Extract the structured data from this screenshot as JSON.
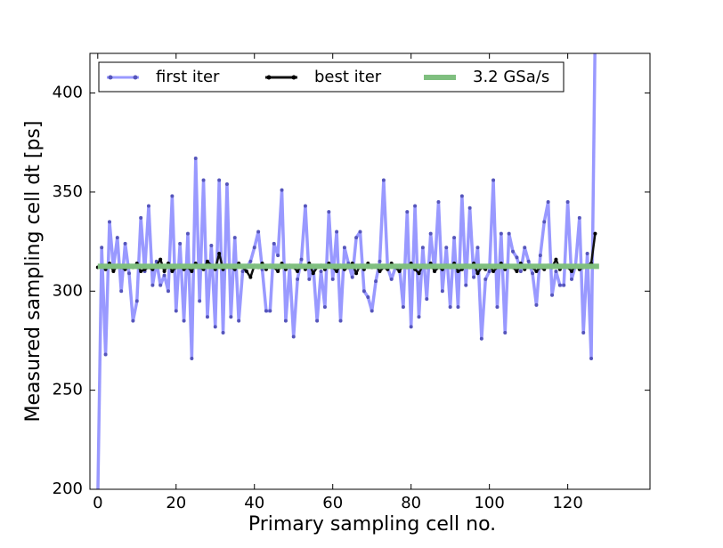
{
  "chart_data": {
    "type": "line",
    "xlabel": "Primary sampling cell no.",
    "ylabel": "Measured sampling cell dt [ps]",
    "x": [
      0,
      1,
      2,
      3,
      4,
      5,
      6,
      7,
      8,
      9,
      10,
      11,
      12,
      13,
      14,
      15,
      16,
      17,
      18,
      19,
      20,
      21,
      22,
      23,
      24,
      25,
      26,
      27,
      28,
      29,
      30,
      31,
      32,
      33,
      34,
      35,
      36,
      37,
      38,
      39,
      40,
      41,
      42,
      43,
      44,
      45,
      46,
      47,
      48,
      49,
      50,
      51,
      52,
      53,
      54,
      55,
      56,
      57,
      58,
      59,
      60,
      61,
      62,
      63,
      64,
      65,
      66,
      67,
      68,
      69,
      70,
      71,
      72,
      73,
      74,
      75,
      76,
      77,
      78,
      79,
      80,
      81,
      82,
      83,
      84,
      85,
      86,
      87,
      88,
      89,
      90,
      91,
      92,
      93,
      94,
      95,
      96,
      97,
      98,
      99,
      100,
      101,
      102,
      103,
      104,
      105,
      106,
      107,
      108,
      109,
      110,
      111,
      112,
      113,
      114,
      115,
      116,
      117,
      118,
      119,
      120,
      121,
      122,
      123,
      124,
      125,
      126,
      127
    ],
    "series": [
      {
        "name": "first iter",
        "color": "#9999ff",
        "values": [
          195,
          322,
          268,
          335,
          312,
          327,
          300,
          324,
          309,
          285,
          295,
          337,
          310,
          343,
          303,
          315,
          303,
          308,
          300,
          348,
          290,
          324,
          285,
          329,
          266,
          367,
          295,
          356,
          287,
          323,
          282,
          356,
          279,
          354,
          287,
          327,
          285,
          310,
          312,
          315,
          322,
          330,
          311,
          290,
          290,
          324,
          318,
          351,
          285,
          312,
          277,
          306,
          316,
          343,
          306,
          313,
          285,
          310,
          292,
          340,
          306,
          330,
          285,
          322,
          314,
          307,
          327,
          330,
          300,
          297,
          290,
          305,
          315,
          356,
          312,
          306,
          312,
          313,
          292,
          340,
          282,
          343,
          287,
          322,
          296,
          329,
          310,
          345,
          300,
          322,
          292,
          327,
          292,
          348,
          303,
          342,
          307,
          322,
          276,
          306,
          310,
          356,
          292,
          329,
          279,
          329,
          320,
          317,
          310,
          322,
          315,
          309,
          293,
          318,
          335,
          345,
          298,
          310,
          303,
          303,
          345,
          306,
          313,
          337,
          279,
          319,
          266,
          430
        ]
      },
      {
        "name": "best iter",
        "color": "#111111",
        "values": [
          312,
          313,
          311,
          314,
          310,
          313,
          312,
          311,
          313,
          312,
          314,
          310,
          311,
          312,
          311,
          313,
          316,
          310,
          314,
          310,
          312,
          313,
          311,
          312,
          310,
          314,
          312,
          311,
          315,
          313,
          311,
          319,
          311,
          313,
          312,
          311,
          314,
          312,
          310,
          307,
          313,
          312,
          314,
          311,
          313,
          312,
          310,
          314,
          311,
          313,
          312,
          310,
          313,
          311,
          314,
          309,
          312,
          313,
          311,
          314,
          312,
          310,
          313,
          311,
          312,
          314,
          309,
          313,
          311,
          314,
          312,
          313,
          310,
          312,
          311,
          314,
          312,
          310,
          313,
          312,
          314,
          311,
          309,
          313,
          312,
          314,
          310,
          312,
          311,
          313,
          312,
          314,
          310,
          311,
          313,
          312,
          314,
          309,
          312,
          311,
          313,
          310,
          312,
          314,
          311,
          313,
          312,
          310,
          314,
          311,
          313,
          312,
          310,
          312,
          311,
          313,
          312,
          316,
          311,
          313,
          312,
          310,
          313,
          311,
          312,
          313,
          314,
          329
        ]
      },
      {
        "name": "3.2 GSa/s",
        "color": "#7fbf7f",
        "x": [
          0,
          128
        ],
        "values": [
          312.5,
          312.5
        ]
      }
    ],
    "xlim": [
      -2,
      141
    ],
    "ylim": [
      200,
      420
    ],
    "xticks": [
      0,
      20,
      40,
      60,
      80,
      100,
      120
    ],
    "yticks": [
      200,
      250,
      300,
      350,
      400
    ],
    "legend": "upper left"
  }
}
